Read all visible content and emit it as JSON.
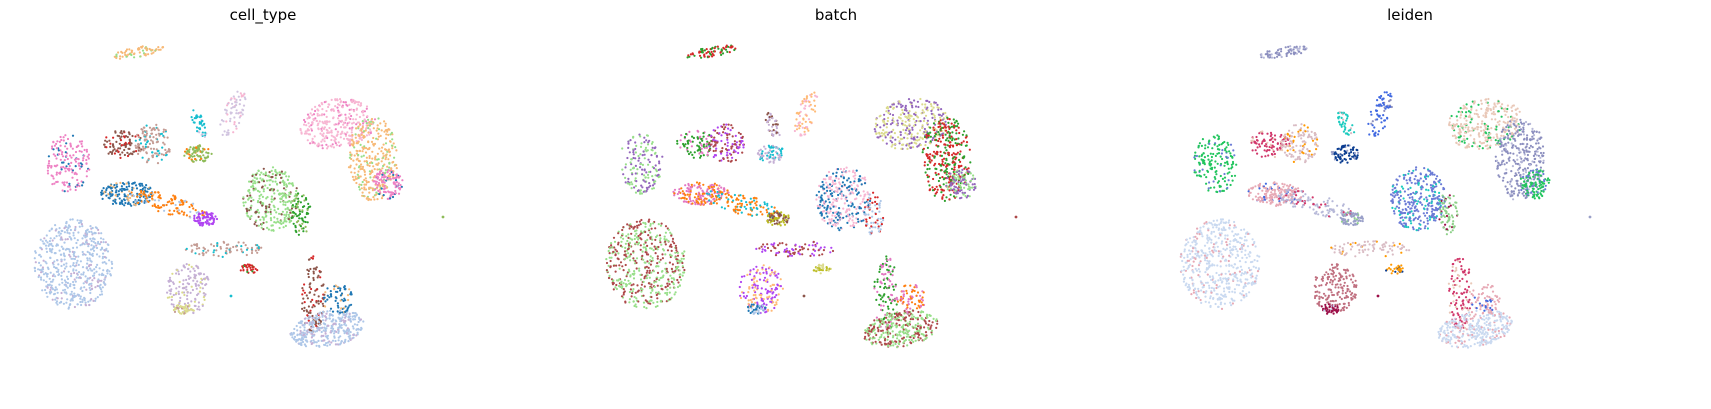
{
  "chart_data": [
    {
      "type": "scatter",
      "title": "cell_type",
      "xlabel": "",
      "ylabel": "",
      "grid": false,
      "colors": [
        "#f7b977",
        "#d1c4e0",
        "#ee82c4",
        "#17becf",
        "#8c564b",
        "#98df8a",
        "#aec7e8",
        "#b044f2",
        "#1f77b4",
        "#dbdb8d",
        "#c49c94",
        "#d62728",
        "#ff7f0e",
        "#2ca02c",
        "#c5b0d5",
        "#f7b6d2",
        "#8fbc5a"
      ]
    },
    {
      "type": "scatter",
      "title": "batch",
      "xlabel": "",
      "ylabel": "",
      "grid": false,
      "colors": [
        "#f7b6d2",
        "#d62728",
        "#ff7f0e",
        "#8c564b",
        "#9467bd",
        "#b044f2",
        "#1f77b4",
        "#2ca02c",
        "#17becf",
        "#bcbd22",
        "#98df8a",
        "#ffbb78",
        "#aec7e8",
        "#e377c2",
        "#c5b0d5",
        "#dbdb8d",
        "#ad494a"
      ]
    },
    {
      "type": "scatter",
      "title": "leiden",
      "xlabel": "",
      "ylabel": "",
      "grid": false,
      "colors": [
        "#0b3d91",
        "#e7a9b5",
        "#8c8fbf",
        "#9c0f48",
        "#4169e1",
        "#d9bcc4",
        "#22c55e",
        "#ff9900",
        "#1ccbbf",
        "#b6b8d8",
        "#d1376a",
        "#8fd18a",
        "#6b7bd6",
        "#c07080",
        "#c9d9f0",
        "#e9c8b8",
        "#9aa0c8"
      ]
    }
  ]
}
